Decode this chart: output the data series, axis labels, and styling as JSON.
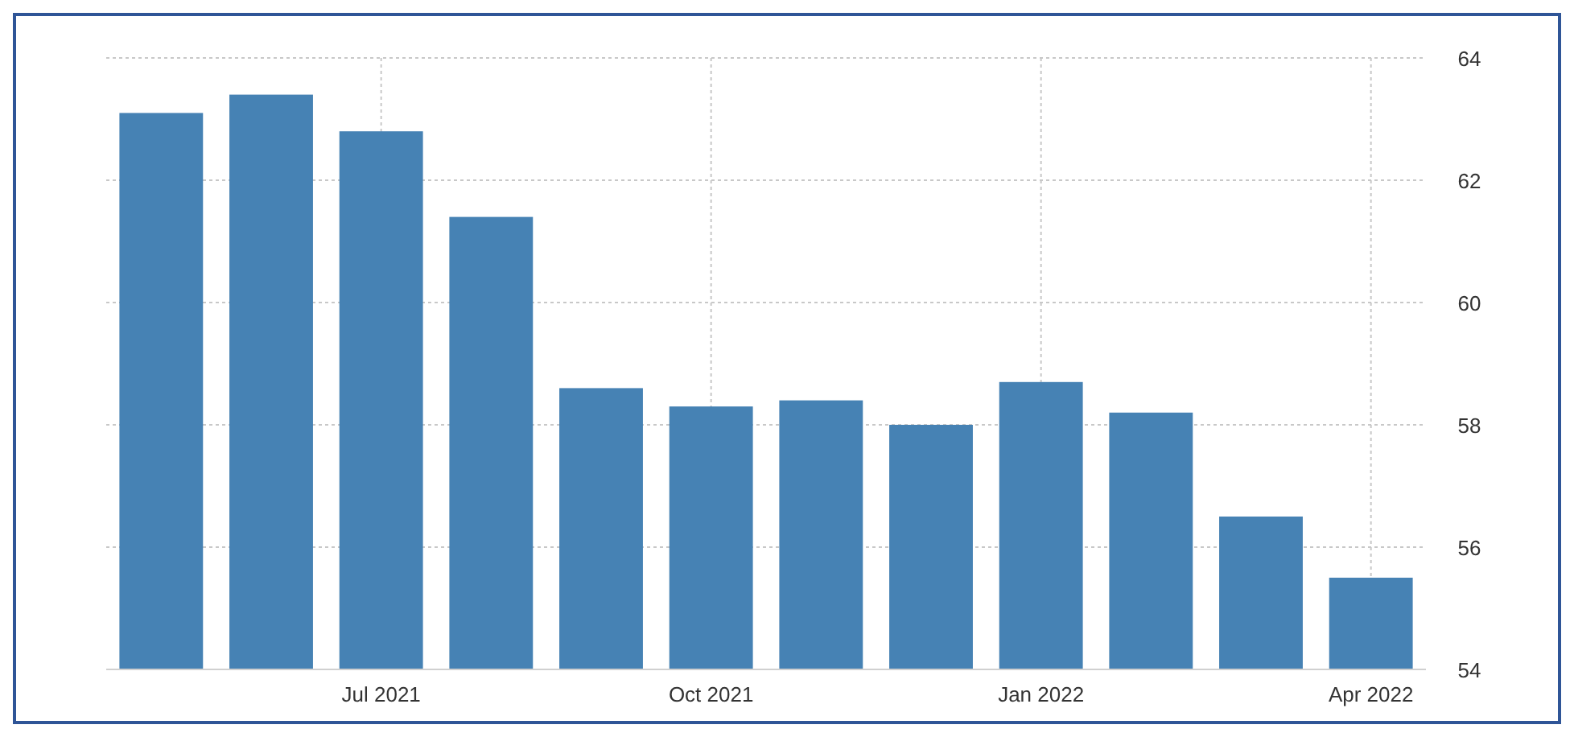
{
  "chart_data": {
    "type": "bar",
    "categories": [
      null,
      null,
      "Jul 2021",
      null,
      null,
      "Oct 2021",
      null,
      null,
      "Jan 2022",
      null,
      null,
      "Apr 2022"
    ],
    "values": [
      63.1,
      63.4,
      62.8,
      61.4,
      58.6,
      58.3,
      58.4,
      58.0,
      58.7,
      58.2,
      56.5,
      55.5
    ],
    "color": "#4682b4",
    "ylim": [
      54,
      64
    ],
    "yticks": [
      54,
      56,
      58,
      60,
      62,
      64
    ],
    "grid": true
  }
}
